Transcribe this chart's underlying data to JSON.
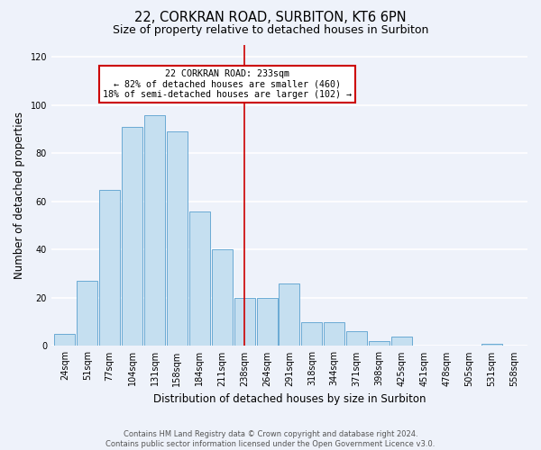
{
  "title": "22, CORKRAN ROAD, SURBITON, KT6 6PN",
  "subtitle": "Size of property relative to detached houses in Surbiton",
  "xlabel": "Distribution of detached houses by size in Surbiton",
  "ylabel": "Number of detached properties",
  "footer_line1": "Contains HM Land Registry data © Crown copyright and database right 2024.",
  "footer_line2": "Contains public sector information licensed under the Open Government Licence v3.0.",
  "bar_labels": [
    "24sqm",
    "51sqm",
    "77sqm",
    "104sqm",
    "131sqm",
    "158sqm",
    "184sqm",
    "211sqm",
    "238sqm",
    "264sqm",
    "291sqm",
    "318sqm",
    "344sqm",
    "371sqm",
    "398sqm",
    "425sqm",
    "451sqm",
    "478sqm",
    "505sqm",
    "531sqm",
    "558sqm"
  ],
  "bar_values": [
    5,
    27,
    65,
    91,
    96,
    89,
    56,
    40,
    20,
    20,
    26,
    10,
    10,
    6,
    2,
    4,
    0,
    0,
    0,
    1,
    0
  ],
  "bar_color": "#c5dff0",
  "bar_edge_color": "#6aaad4",
  "vline_x_index": 8,
  "vline_color": "#cc0000",
  "annotation_title": "22 CORKRAN ROAD: 233sqm",
  "annotation_line1": "← 82% of detached houses are smaller (460)",
  "annotation_line2": "18% of semi-detached houses are larger (102) →",
  "annotation_box_edge_color": "#cc0000",
  "background_color": "#eef2fa",
  "plot_bg_color": "#eef2fa",
  "ylim": [
    0,
    125
  ],
  "yticks": [
    0,
    20,
    40,
    60,
    80,
    100,
    120
  ],
  "grid_color": "#ffffff",
  "title_fontsize": 10.5,
  "subtitle_fontsize": 9,
  "axis_label_fontsize": 8.5,
  "tick_fontsize": 7,
  "footer_fontsize": 6
}
